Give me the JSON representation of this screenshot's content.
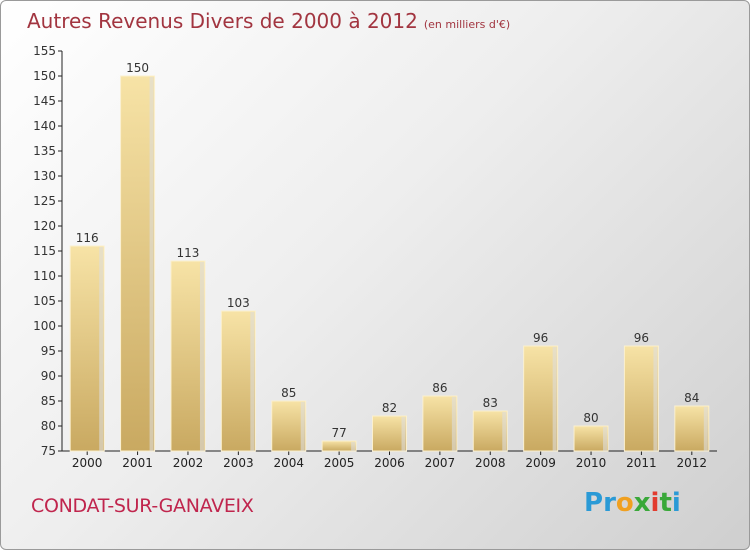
{
  "page": {
    "title": "Autres Revenus Divers de 2000 à 2012",
    "unit": "(en milliers d'€)",
    "city": "CONDAT-SUR-GANAVEIX",
    "logo_text": "Proxiti"
  },
  "chart_data": {
    "type": "bar",
    "title": "Autres Revenus Divers de 2000 à 2012",
    "subtitle": "(en milliers d'€)",
    "xlabel": "",
    "ylabel": "",
    "categories": [
      "2000",
      "2001",
      "2002",
      "2003",
      "2004",
      "2005",
      "2006",
      "2007",
      "2008",
      "2009",
      "2010",
      "2011",
      "2012"
    ],
    "values": [
      116,
      150,
      113,
      103,
      85,
      77,
      82,
      86,
      83,
      96,
      80,
      96,
      84
    ],
    "ylim": [
      75,
      155
    ],
    "yticks": [
      75,
      80,
      85,
      90,
      95,
      100,
      105,
      110,
      115,
      120,
      125,
      130,
      135,
      140,
      145,
      150,
      155
    ],
    "grid": false,
    "legend": "none",
    "colors": {
      "bar": "#e8ce86",
      "bar_light": "#f5df9f",
      "bar_dark": "#c7a85e",
      "axis": "#333333",
      "title": "#a23540",
      "city": "#c0254d"
    }
  }
}
